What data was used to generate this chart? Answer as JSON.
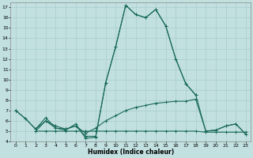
{
  "xlabel": "Humidex (Indice chaleur)",
  "bg_color": "#c2e0e0",
  "grid_color": "#a8cccc",
  "line_color": "#1a6b5a",
  "xlim": [
    -0.5,
    23.5
  ],
  "ylim": [
    4,
    17.5
  ],
  "xticks": [
    0,
    1,
    2,
    3,
    4,
    5,
    6,
    7,
    8,
    9,
    10,
    11,
    12,
    13,
    14,
    15,
    16,
    17,
    18,
    19,
    20,
    21,
    22,
    23
  ],
  "yticks": [
    4,
    5,
    6,
    7,
    8,
    9,
    10,
    11,
    12,
    13,
    14,
    15,
    16,
    17
  ],
  "lines": [
    [
      7.0,
      6.2,
      5.2,
      6.3,
      5.3,
      5.1,
      5.7,
      4.3,
      4.4,
      9.7,
      13.2,
      17.2,
      16.3,
      16.0,
      16.8,
      15.2,
      12.0,
      9.6,
      8.5,
      null,
      null,
      null,
      null,
      null
    ],
    [
      7.0,
      6.2,
      5.2,
      6.0,
      5.3,
      5.2,
      5.5,
      4.5,
      4.5,
      9.7,
      13.2,
      17.2,
      16.3,
      16.0,
      16.8,
      15.2,
      12.0,
      9.6,
      8.5,
      5.0,
      5.1,
      5.5,
      5.7,
      4.7
    ],
    [
      7.0,
      null,
      5.0,
      5.0,
      5.0,
      5.0,
      5.0,
      5.0,
      5.0,
      5.0,
      5.0,
      5.0,
      5.0,
      5.0,
      5.0,
      5.0,
      5.0,
      5.0,
      5.0,
      4.9,
      4.9,
      4.9,
      4.9,
      4.9
    ],
    [
      7.0,
      null,
      5.0,
      6.0,
      5.5,
      5.2,
      5.5,
      4.8,
      5.3,
      6.0,
      6.5,
      7.0,
      7.3,
      7.5,
      7.7,
      7.8,
      7.9,
      7.9,
      8.1,
      5.0,
      5.1,
      5.5,
      5.7,
      4.7
    ]
  ]
}
